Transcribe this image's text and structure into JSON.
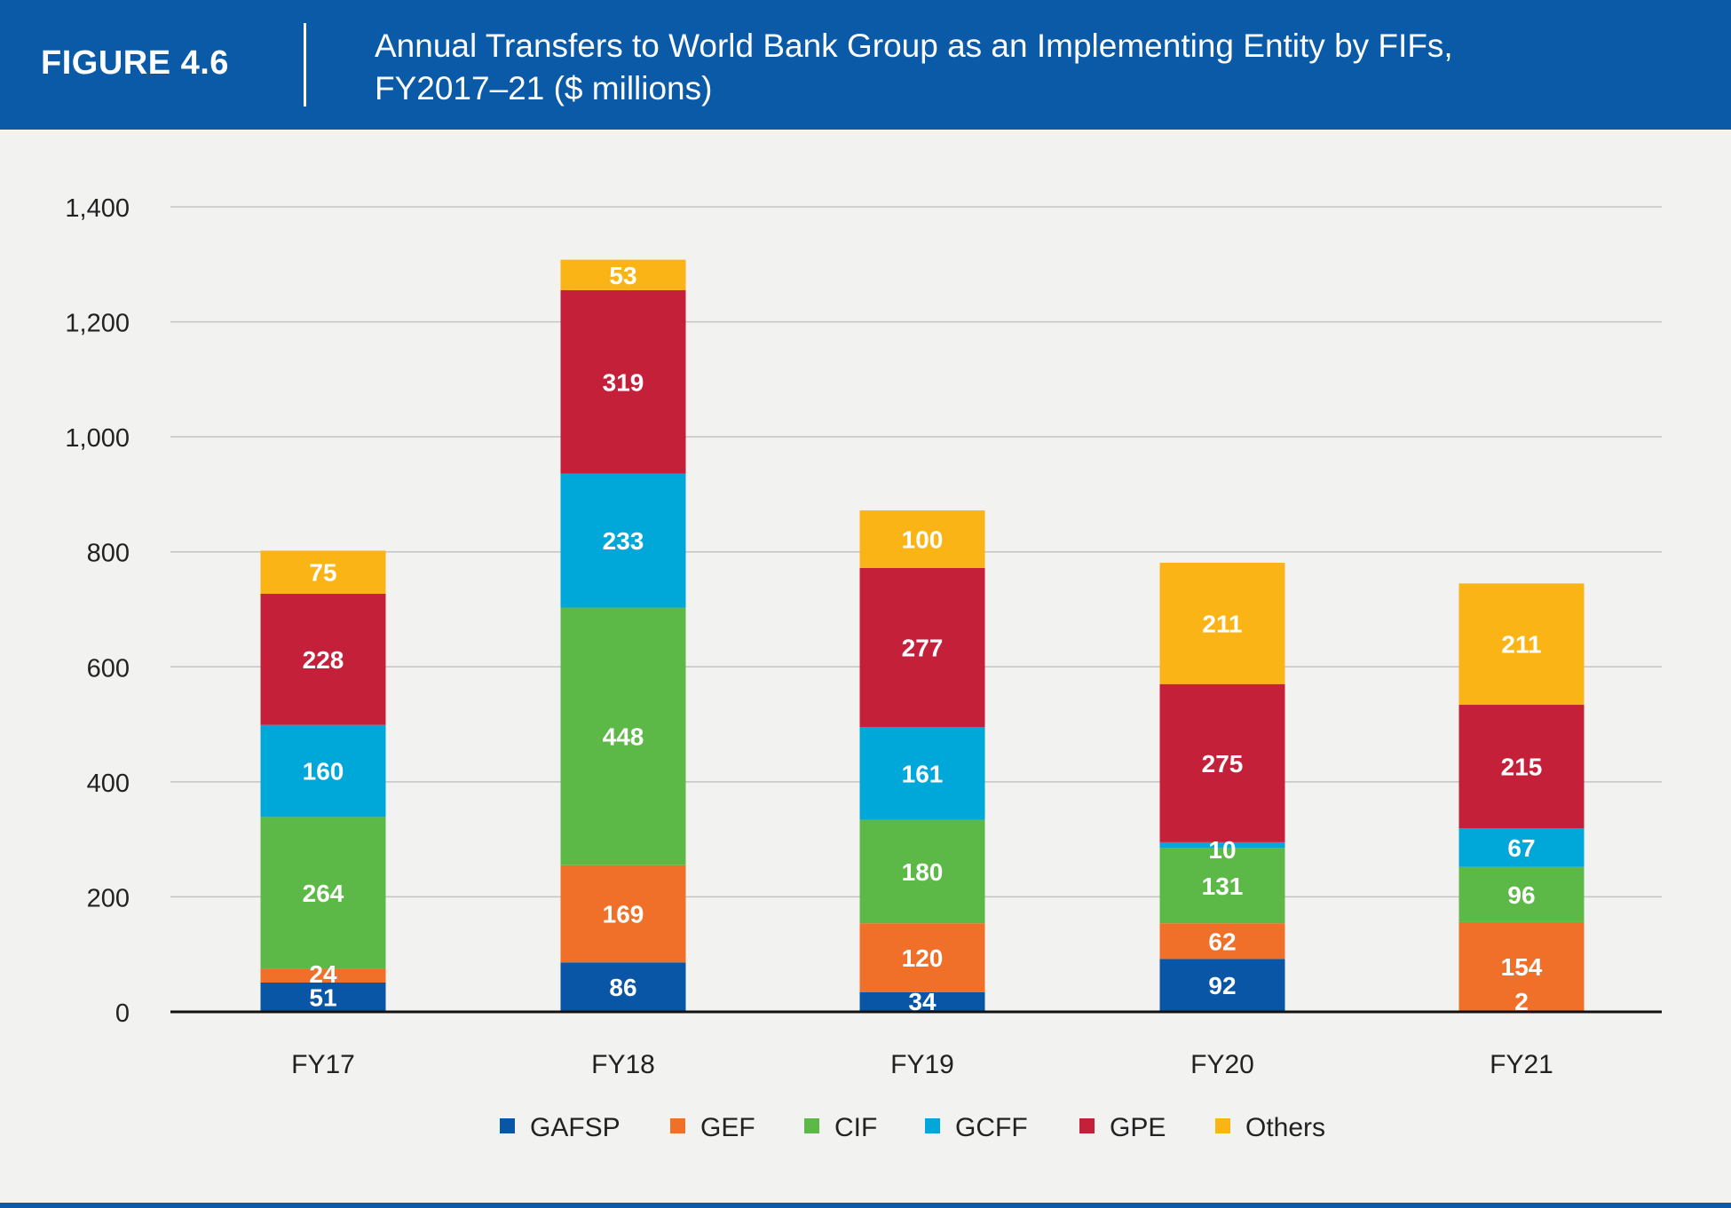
{
  "header": {
    "figure_label": "FIGURE 4.6",
    "title_line1": "Annual Transfers to World Bank Group as an Implementing Entity by FIFs,",
    "title_line2": "FY2017–21 ($ millions)"
  },
  "colors": {
    "header_bg": "#0a5aa8",
    "GAFSP": "#0a56a6",
    "GEF": "#f07029",
    "CIF": "#5db947",
    "GCFF": "#00a7d9",
    "GPE": "#c5203a",
    "Others": "#fbb416"
  },
  "chart_data": {
    "type": "bar",
    "stacked": true,
    "categories": [
      "FY17",
      "FY18",
      "FY19",
      "FY20",
      "FY21"
    ],
    "series": [
      {
        "name": "GAFSP",
        "values": [
          51,
          86,
          34,
          92,
          2
        ]
      },
      {
        "name": "GEF",
        "values": [
          24,
          169,
          120,
          62,
          154
        ]
      },
      {
        "name": "CIF",
        "values": [
          264,
          448,
          180,
          131,
          96
        ]
      },
      {
        "name": "GCFF",
        "values": [
          160,
          233,
          161,
          10,
          67
        ]
      },
      {
        "name": "GPE",
        "values": [
          228,
          319,
          277,
          275,
          215
        ]
      },
      {
        "name": "Others",
        "values": [
          75,
          53,
          100,
          211,
          211
        ]
      }
    ],
    "ylim": [
      0,
      1400
    ],
    "yticks": [
      0,
      200,
      400,
      600,
      800,
      1000,
      1200,
      1400
    ],
    "ytick_labels": [
      "0",
      "200",
      "400",
      "600",
      "800",
      "1,000",
      "1,200",
      "1,400"
    ],
    "grid": true,
    "legend_position": "bottom"
  }
}
